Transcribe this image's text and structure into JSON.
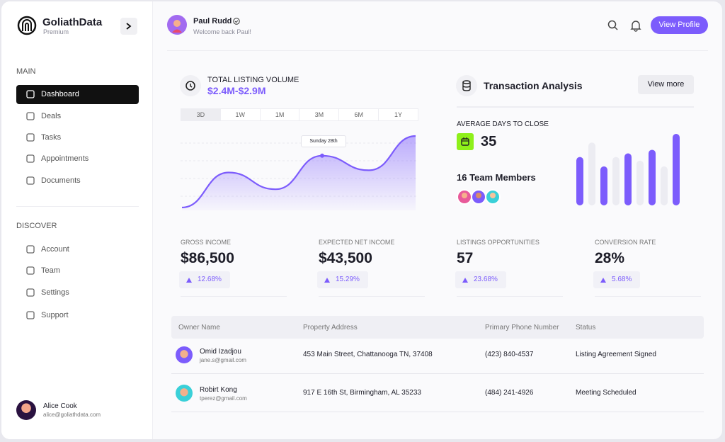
{
  "sidebar": {
    "brand": "GoliathData",
    "plan": "Premium",
    "sections": [
      {
        "title": "MAIN",
        "items": [
          "Dashboard",
          "Deals",
          "Tasks",
          "Appointments",
          "Documents"
        ]
      },
      {
        "title": "DISCOVER",
        "items": [
          "Account",
          "Team",
          "Settings",
          "Support"
        ]
      }
    ],
    "user": {
      "name": "Alice Cook",
      "email": "alice@goliathdata.com"
    }
  },
  "header": {
    "name": "Paul Rudd",
    "greeting": "Welcome back Paul!",
    "button": "View Profile"
  },
  "listing": {
    "title": "TOTAL LISTING VOLUME",
    "range": "$2.4M-$2.9M",
    "periods": [
      "3D",
      "1W",
      "1M",
      "3M",
      "6M",
      "1Y"
    ],
    "tooltip": "Sunday 28th",
    "chart": {
      "type": "area",
      "values": [
        2,
        50,
        27,
        73,
        53,
        100
      ],
      "ylim": [
        0,
        100
      ],
      "color": "#7c5cfc"
    }
  },
  "transaction": {
    "title": "Transaction Analysis",
    "button": "View more",
    "days_label": "AVERAGE DAYS TO CLOSE",
    "days": 35,
    "team": "16 Team Members",
    "chart": {
      "type": "bar",
      "values": [
        67,
        87,
        54,
        67,
        72,
        62,
        77,
        54,
        99
      ],
      "colors": [
        "#7c5cfc",
        "#ececf2",
        "#7c5cfc",
        "#ececf2",
        "#7c5cfc",
        "#ececf2",
        "#7c5cfc",
        "#ececf2",
        "#7c5cfc"
      ],
      "ylim": [
        0,
        100
      ]
    }
  },
  "stats": [
    {
      "label": "GROSS INCOME",
      "value": "$86,500",
      "change": "12.68%"
    },
    {
      "label": "EXPECTED NET INCOME",
      "value": "$43,500",
      "change": "15.29%"
    },
    {
      "label": "LISTINGS OPPORTUNITIES",
      "value": "57",
      "change": "23.68%"
    },
    {
      "label": "CONVERSION RATE",
      "value": "28%",
      "change": "5.68%"
    }
  ],
  "table": {
    "columns": [
      "Owner Name",
      "Property Address",
      "Primary Phone Number",
      "Status"
    ],
    "rows": [
      {
        "name": "Omid Izadjou",
        "email": "jane.s@gmail.com",
        "address": "453 Main Street, Chattanooga TN, 37408",
        "phone": "(423) 840-4537",
        "status": "Listing Agreement Signed"
      },
      {
        "name": "Robirt Kong",
        "email": "tperez@gmail.com",
        "address": "917 E 16th St, Birmingham, AL 35233",
        "phone": "(484) 241-4926",
        "status": "Meeting Scheduled"
      }
    ]
  }
}
